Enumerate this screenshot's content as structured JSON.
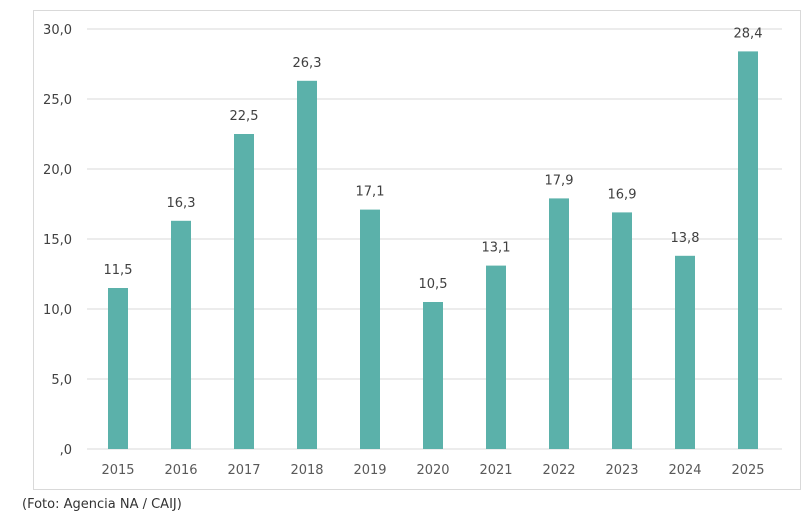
{
  "chart_data": {
    "type": "bar",
    "categories": [
      "2015",
      "2016",
      "2017",
      "2018",
      "2019",
      "2020",
      "2021",
      "2022",
      "2023",
      "2024",
      "2025"
    ],
    "values": [
      11.5,
      16.3,
      22.5,
      26.3,
      17.1,
      10.5,
      13.1,
      17.9,
      16.9,
      13.8,
      28.4
    ],
    "data_labels": [
      "11,5",
      "16,3",
      "22,5",
      "26,3",
      "17,1",
      "10,5",
      "13,1",
      "17,9",
      "16,9",
      "13,8",
      "28,4"
    ],
    "yticks": [
      0,
      5,
      10,
      15,
      20,
      25,
      30
    ],
    "ytick_labels": [
      ",0",
      "5,0",
      "10,0",
      "15,0",
      "20,0",
      "25,0",
      "30,0"
    ],
    "ylim": [
      0,
      30
    ],
    "grid": true,
    "bar_color": "#5bb1aa",
    "title": "",
    "xlabel": "",
    "ylabel": ""
  },
  "caption": "(Foto: Agencia NA / CAIJ)"
}
